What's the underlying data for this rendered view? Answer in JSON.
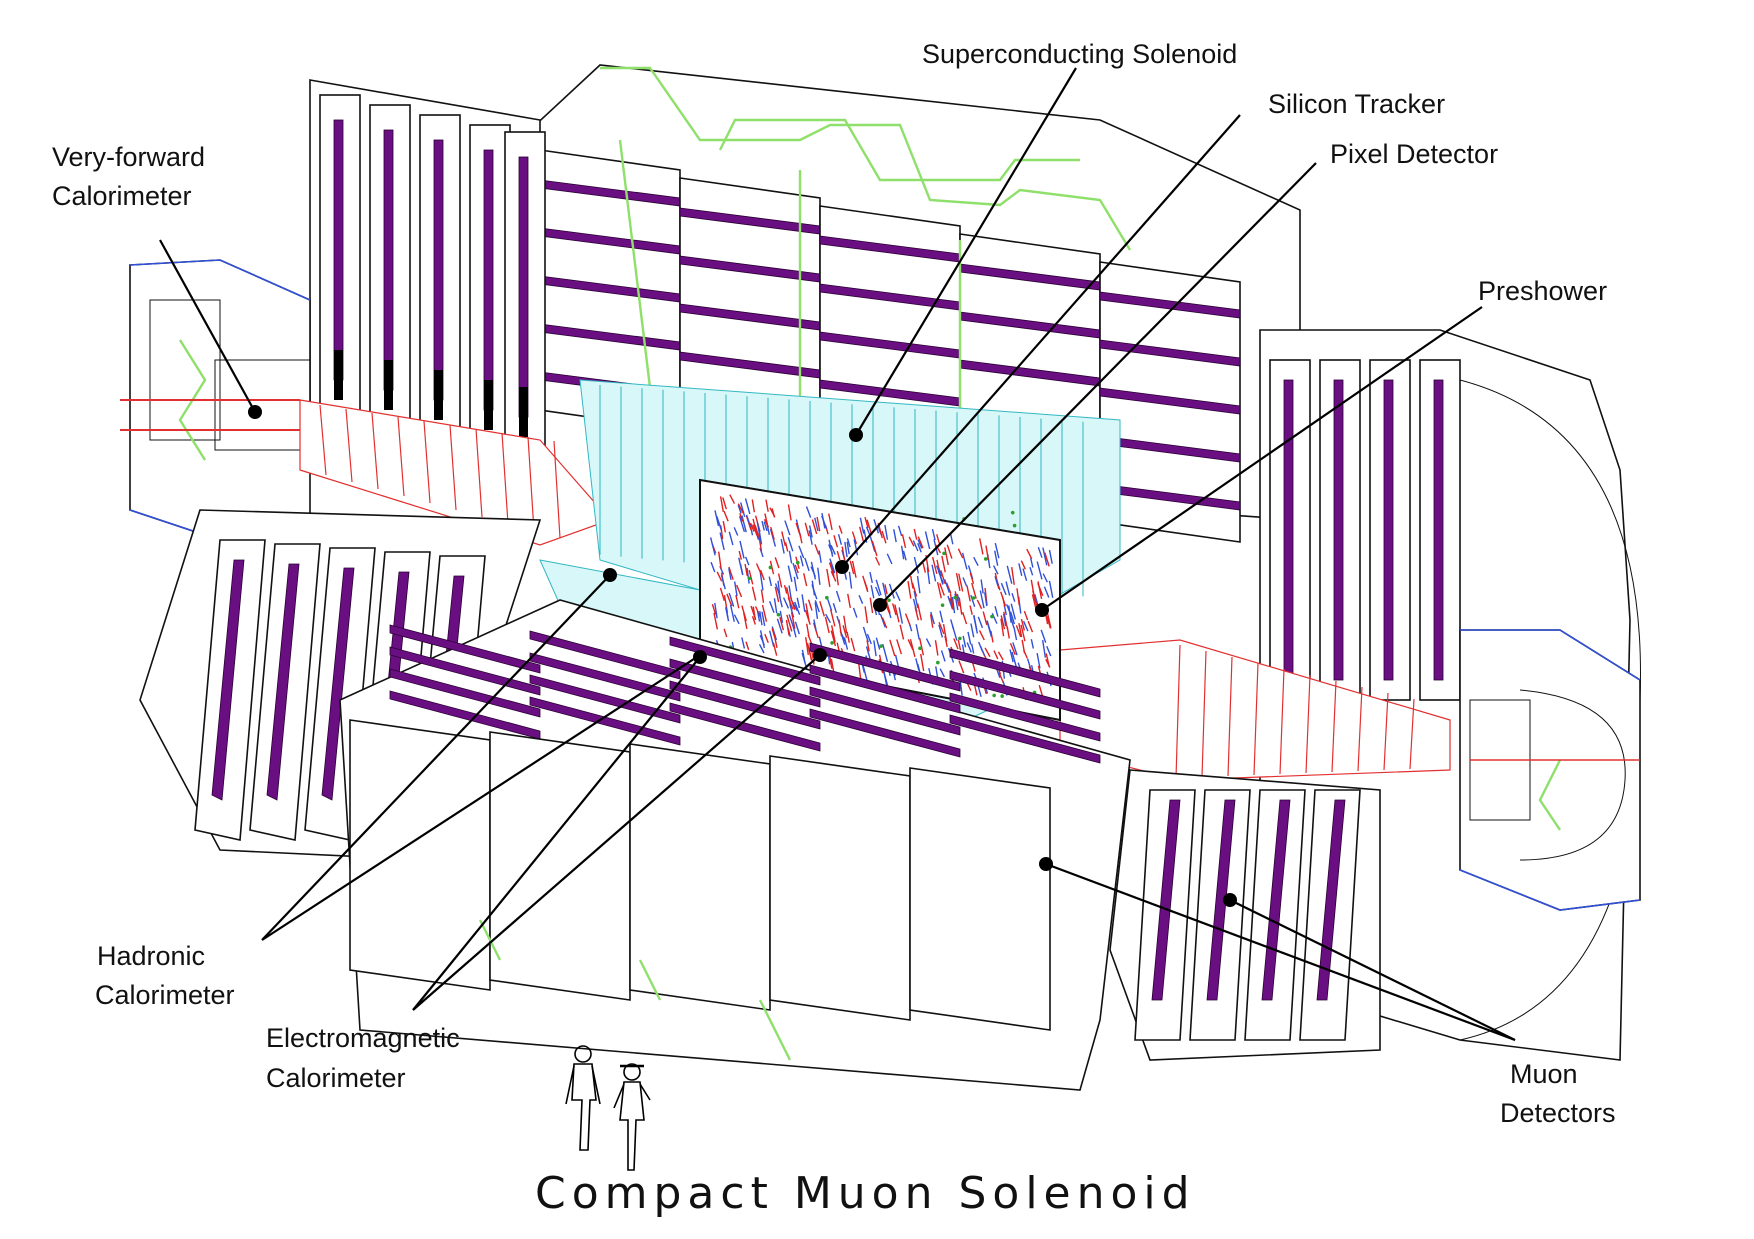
{
  "title": "Compact Muon Solenoid",
  "labels": {
    "superconducting_solenoid": "Superconducting Solenoid",
    "silicon_tracker": "Silicon Tracker",
    "pixel_detector": "Pixel Detector",
    "preshower": "Preshower",
    "very_forward_line1": "Very-forward",
    "very_forward_line2": "Calorimeter",
    "hadronic_line1": "Hadronic",
    "hadronic_line2": "Calorimeter",
    "electromagnetic_line1": "Electromagnetic",
    "electromagnetic_line2": "Calorimeter",
    "muon_line1": "Muon",
    "muon_line2": "Detectors"
  },
  "colors": {
    "line": "#000000",
    "muon_chamber": "#6a0f82",
    "return_yoke_outline": "#8ee06a",
    "ecal": "#d8f7f8",
    "hcal_endcap": "#e23030",
    "tracker_blue": "#3050d8",
    "tracker_red": "#e02020"
  }
}
